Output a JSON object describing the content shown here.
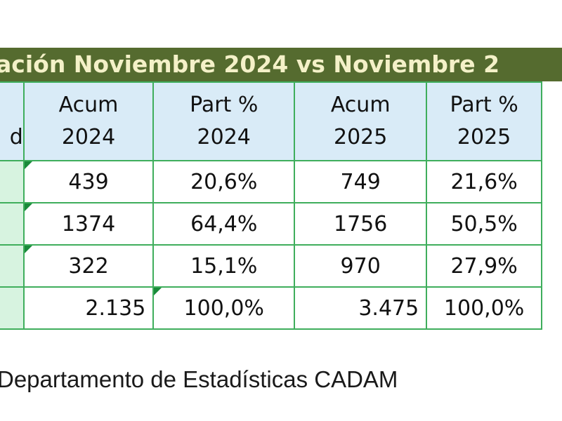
{
  "title": "ación Noviembre 2024 vs Noviembre 2",
  "source": "Departamento de Estadísticas CADAM",
  "chart_data": {
    "type": "table",
    "columns": [
      {
        "line1": "",
        "line2": "d"
      },
      {
        "line1": "Acum",
        "line2": "2024"
      },
      {
        "line1": "Part %",
        "line2": "2024"
      },
      {
        "line1": "Acum",
        "line2": "2025"
      },
      {
        "line1": "Part %",
        "line2": "2025"
      }
    ],
    "rows": [
      [
        "",
        "439",
        "20,6%",
        "749",
        "21,6%"
      ],
      [
        "",
        "1374",
        "64,4%",
        "1756",
        "50,5%"
      ],
      [
        "",
        "322",
        "15,1%",
        "970",
        "27,9%"
      ]
    ],
    "total_row": [
      "",
      "2.135",
      "100,0%",
      "3.475",
      "100,0%"
    ],
    "colors": {
      "title_bg": "#556b2f",
      "title_text": "#f4f1c8",
      "header_bg": "#d9ebf7",
      "first_col_bg": "#d7f3e0",
      "border": "#3fae5c",
      "flag": "#1a8a3a"
    }
  }
}
